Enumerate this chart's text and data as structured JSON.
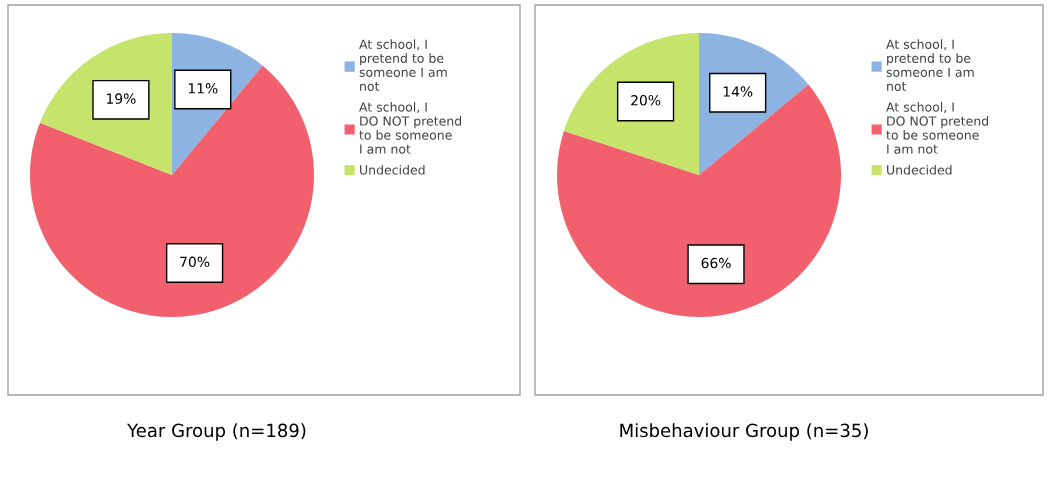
{
  "chart_data": [
    {
      "type": "pie",
      "title": "Year Group (n=189)",
      "categories": [
        "At school, I pretend to be someone I am not",
        "At school, I DO NOT pretend to be someone I am not",
        "Undecided"
      ],
      "values": [
        11,
        70,
        19
      ],
      "value_labels": [
        "11%",
        "70%",
        "19%"
      ],
      "colors": [
        "#8db3e2",
        "#f2606e",
        "#c6e36b"
      ],
      "legend": "right"
    },
    {
      "type": "pie",
      "title": "Misbehaviour Group (n=35)",
      "categories": [
        "At school, I pretend to be someone I am not",
        "At school, I DO NOT pretend to be someone I am not",
        "Undecided"
      ],
      "values": [
        14,
        66,
        20
      ],
      "value_labels": [
        "14%",
        "66%",
        "20%"
      ],
      "colors": [
        "#8db3e2",
        "#f2606e",
        "#c6e36b"
      ],
      "legend": "right"
    }
  ]
}
